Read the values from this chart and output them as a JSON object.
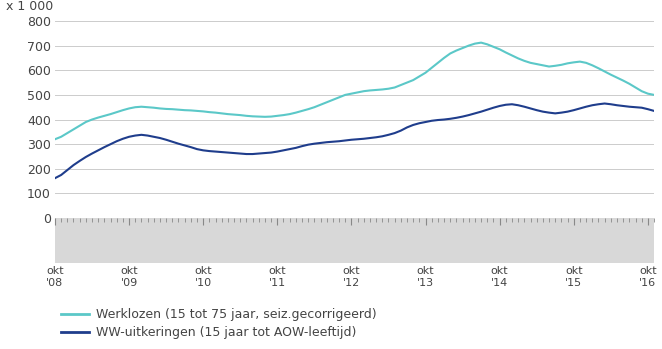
{
  "title_y_label": "x 1 000",
  "ylim": [
    0,
    800
  ],
  "yticks": [
    0,
    100,
    200,
    300,
    400,
    500,
    600,
    700,
    800
  ],
  "xlabel_ticks": [
    "okt\n'08",
    "okt\n'09",
    "okt\n'10",
    "okt\n'11",
    "okt\n'12",
    "okt\n'13",
    "okt\n'14",
    "okt\n'15",
    "okt\n'16"
  ],
  "n_months": 98,
  "werklozen": [
    320,
    330,
    345,
    360,
    375,
    390,
    400,
    408,
    415,
    422,
    430,
    438,
    445,
    450,
    452,
    450,
    448,
    445,
    443,
    442,
    440,
    438,
    437,
    435,
    433,
    430,
    428,
    425,
    422,
    420,
    418,
    415,
    413,
    412,
    411,
    412,
    415,
    418,
    422,
    428,
    435,
    442,
    450,
    460,
    470,
    480,
    490,
    500,
    505,
    510,
    515,
    518,
    520,
    522,
    525,
    530,
    540,
    550,
    560,
    575,
    590,
    610,
    630,
    650,
    668,
    680,
    690,
    700,
    708,
    712,
    705,
    695,
    685,
    672,
    660,
    648,
    638,
    630,
    625,
    620,
    615,
    618,
    622,
    628,
    632,
    635,
    630,
    620,
    608,
    595,
    582,
    570,
    558,
    545,
    530,
    515,
    505,
    500
  ],
  "ww": [
    162,
    175,
    195,
    215,
    232,
    248,
    262,
    275,
    288,
    300,
    312,
    322,
    330,
    335,
    338,
    335,
    330,
    325,
    318,
    310,
    302,
    295,
    288,
    280,
    275,
    272,
    270,
    268,
    266,
    264,
    262,
    260,
    260,
    262,
    264,
    266,
    270,
    275,
    280,
    285,
    292,
    298,
    302,
    305,
    308,
    310,
    312,
    315,
    318,
    320,
    322,
    325,
    328,
    332,
    338,
    345,
    355,
    368,
    378,
    385,
    390,
    395,
    398,
    400,
    403,
    407,
    412,
    418,
    425,
    432,
    440,
    448,
    455,
    460,
    462,
    458,
    452,
    445,
    438,
    432,
    428,
    425,
    428,
    432,
    438,
    445,
    452,
    458,
    462,
    465,
    462,
    458,
    455,
    452,
    450,
    448,
    442,
    435
  ],
  "line1_color": "#5bc8c8",
  "line2_color": "#1f3d8c",
  "line_width": 1.5,
  "legend1": "Werklozen (15 tot 75 jaar, seiz.gecorrigeerd)",
  "legend2": "WW-uitkeringen (15 jaar tot AOW-leeftijd)",
  "bg_plot": "#ffffff",
  "bg_xaxis": "#d8d8d8",
  "grid_color": "#cccccc",
  "font_color": "#444444",
  "font_size": 9
}
